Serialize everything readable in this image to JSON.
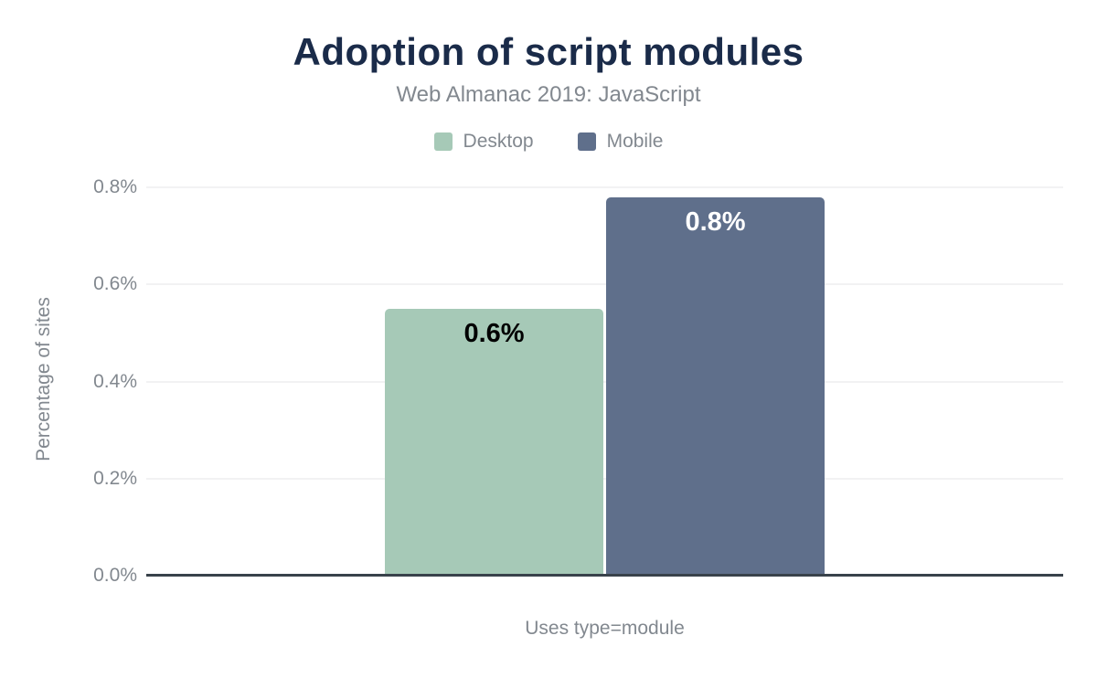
{
  "chart_data": {
    "type": "bar",
    "title": "Adoption of script modules",
    "subtitle": "Web Almanac 2019: JavaScript",
    "categories": [
      "Uses type=module"
    ],
    "series": [
      {
        "name": "Desktop",
        "values": [
          0.55
        ],
        "data_labels": [
          "0.6%"
        ],
        "color": "#a6c9b7",
        "label_color": "#000000"
      },
      {
        "name": "Mobile",
        "values": [
          0.78
        ],
        "data_labels": [
          "0.8%"
        ],
        "color": "#5f6f8b",
        "label_color": "#ffffff"
      }
    ],
    "xlabel": "Uses type=module",
    "ylabel": "Percentage of sites",
    "ylim": [
      0,
      0.8
    ],
    "yticks": [
      {
        "value": 0.0,
        "label": "0.0%"
      },
      {
        "value": 0.2,
        "label": "0.2%"
      },
      {
        "value": 0.4,
        "label": "0.4%"
      },
      {
        "value": 0.6,
        "label": "0.6%"
      },
      {
        "value": 0.8,
        "label": "0.8%"
      }
    ],
    "grid": true,
    "legend_position": "top"
  },
  "colors": {
    "title_text": "#1a2b49",
    "muted_text": "#82888f",
    "gridline": "#f2f2f3",
    "axis_line": "#39424b",
    "background": "#ffffff"
  }
}
